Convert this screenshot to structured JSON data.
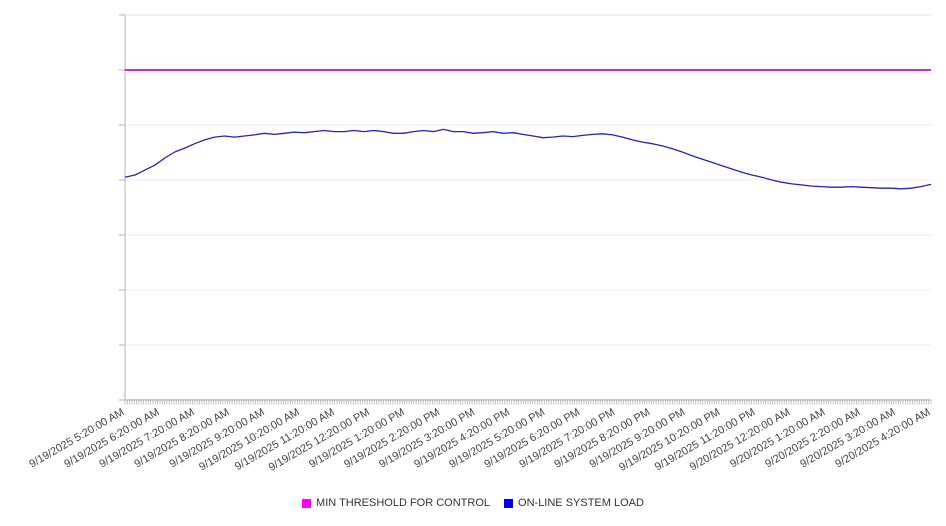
{
  "chart_data": {
    "type": "line",
    "title": "",
    "x_axis": {
      "labels": [
        "9/19/2025 5:20:00 AM",
        "9/19/2025 6:20:00 AM",
        "9/19/2025 7:20:00 AM",
        "9/19/2025 8:20:00 AM",
        "9/19/2025 9:20:00 AM",
        "9/19/2025 10:20:00 AM",
        "9/19/2025 11:20:00 AM",
        "9/19/2025 12:20:00 PM",
        "9/19/2025 1:20:00 PM",
        "9/19/2025 2:20:00 PM",
        "9/19/2025 3:20:00 PM",
        "9/19/2025 4:20:00 PM",
        "9/19/2025 5:20:00 PM",
        "9/19/2025 6:20:00 PM",
        "9/19/2025 7:20:00 PM",
        "9/19/2025 8:20:00 PM",
        "9/19/2025 9:20:00 PM",
        "9/19/2025 10:20:00 PM",
        "9/19/2025 11:20:00 PM",
        "9/20/2025 12:20:00 AM",
        "9/20/2025 1:20:00 AM",
        "9/20/2025 2:20:00 AM",
        "9/20/2025 3:20:00 AM",
        "9/20/2025 4:20:00 AM"
      ],
      "label_rotation_deg": -30,
      "minor_tick_count": 347
    },
    "y_axis": {
      "min": 0,
      "max": 700,
      "gridline_step": 100,
      "labels_visible": false
    },
    "series": [
      {
        "name": "MIN THRESHOLD FOR CONTROL",
        "kind": "threshold",
        "color": "#e21de2",
        "value": 600
      },
      {
        "name": "ON-LINE SYSTEM LOAD",
        "kind": "line",
        "color": "#2323b7",
        "note": "82 samples evenly spaced from 9/19/2025 5:20 AM to 9/20/2025 4:20 AM",
        "values": [
          405,
          409,
          418,
          427,
          440,
          451,
          458,
          466,
          473,
          478,
          480,
          478,
          480,
          482,
          485,
          483,
          485,
          487,
          486,
          488,
          490,
          488,
          488,
          490,
          488,
          490,
          488,
          485,
          485,
          488,
          490,
          488,
          492,
          488,
          488,
          485,
          486,
          488,
          485,
          486,
          483,
          480,
          477,
          478,
          480,
          479,
          481,
          483,
          484,
          482,
          478,
          473,
          469,
          466,
          462,
          457,
          451,
          444,
          438,
          432,
          426,
          420,
          414,
          409,
          405,
          400,
          396,
          393,
          391,
          389,
          388,
          387,
          387,
          388,
          387,
          386,
          385,
          385,
          384,
          385,
          388,
          392
        ]
      }
    ],
    "legend_position": "bottom"
  },
  "legend": {
    "items": [
      {
        "label": "MIN THRESHOLD FOR CONTROL",
        "color": "#ff00ff"
      },
      {
        "label": "ON-LINE SYSTEM LOAD",
        "color": "#0000ee"
      }
    ]
  },
  "colors": {
    "background": "#ffffff",
    "gridline": "#ececec",
    "plot_top_border": "#e0e0e0",
    "y_axis_line": "#b0b0b0",
    "x_axis_line": "#9e9e9e",
    "minor_tick": "#b5b5b5",
    "axis_label_text": "#444444"
  }
}
